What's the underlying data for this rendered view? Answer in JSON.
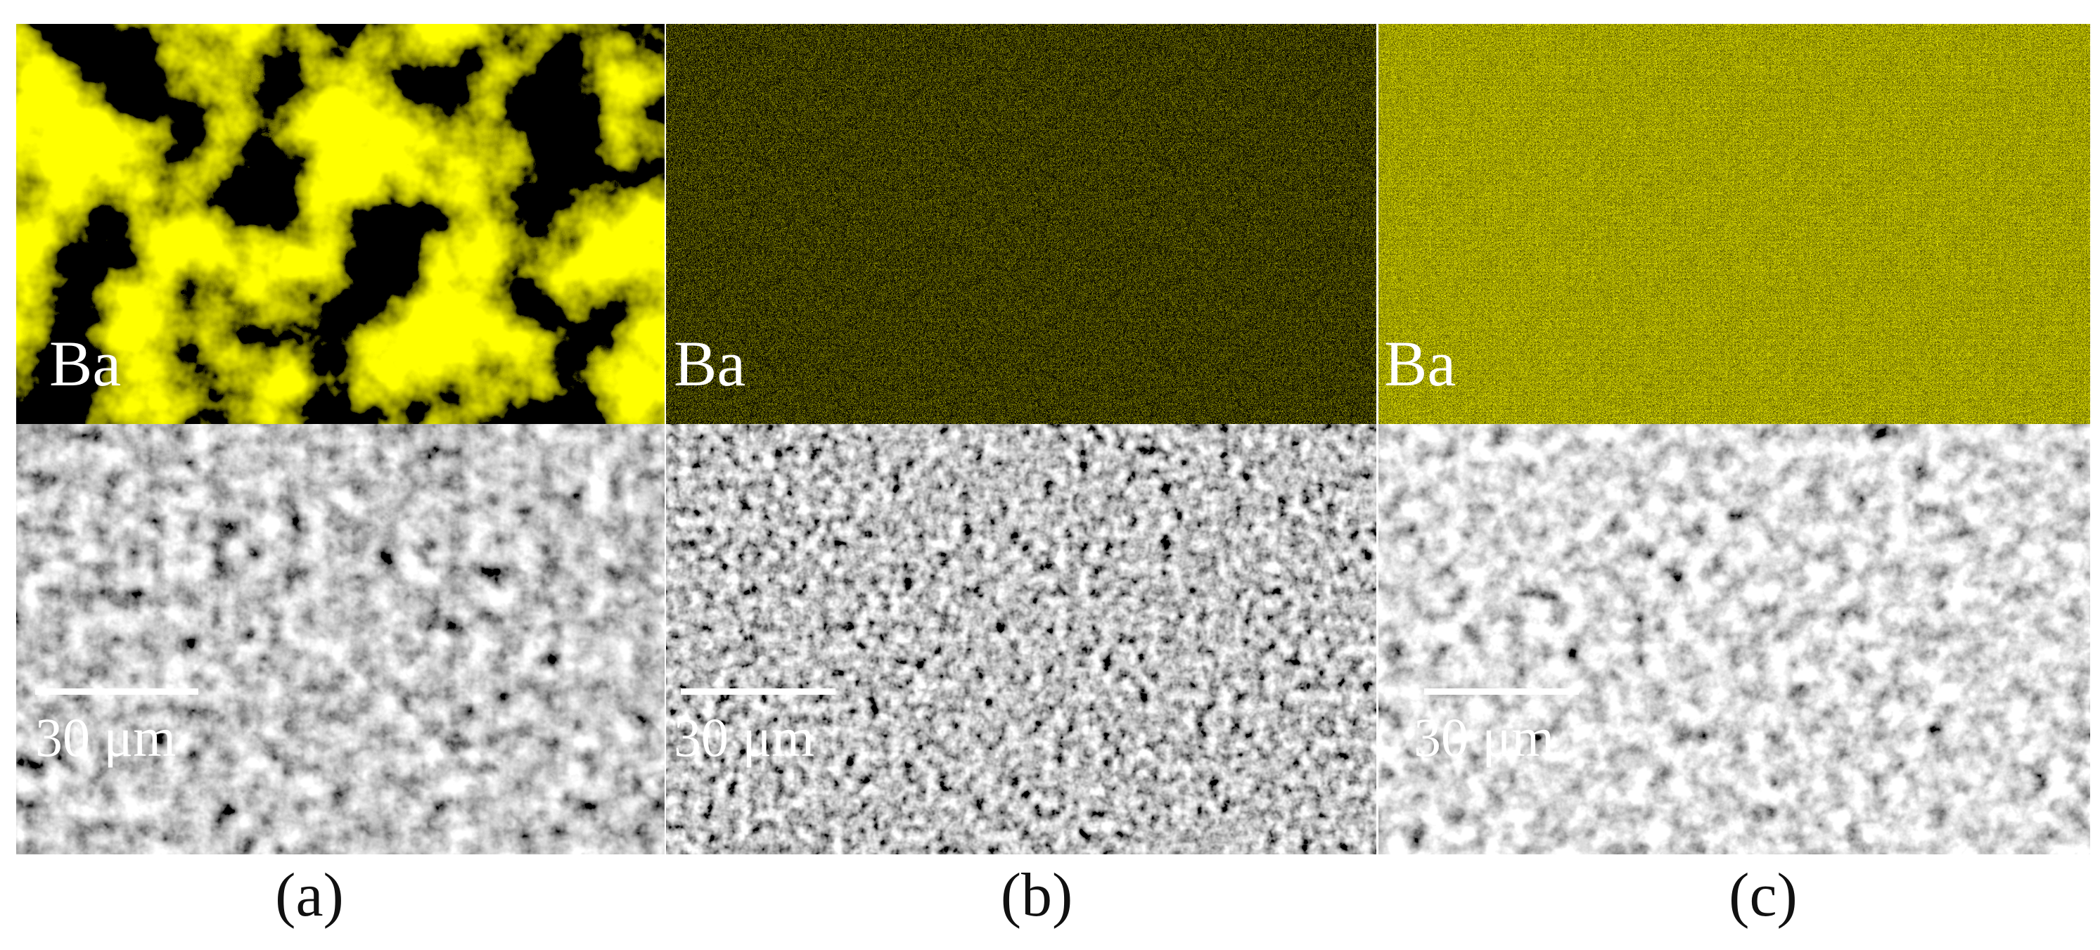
{
  "panels": [
    {
      "element": "Ba",
      "scale": "30 μm",
      "caption": "(a)"
    },
    {
      "element": "Ba",
      "scale": "30 μm",
      "caption": "(b)"
    },
    {
      "element": "Ba",
      "scale": "30 μm",
      "caption": "(c)"
    }
  ]
}
